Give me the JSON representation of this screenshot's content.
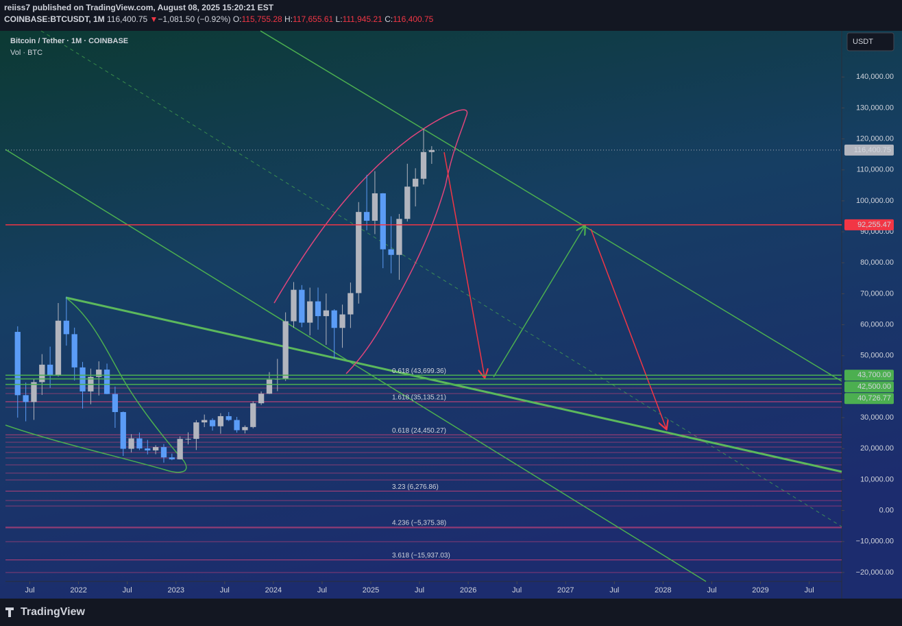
{
  "header": {
    "publisher": "reiiss7 published on TradingView.com, August 08, 2025 15:20:21 EST",
    "symbol": "COINBASE:BTCUSDT, 1M",
    "last": "116,400.75",
    "arrow": "▼",
    "change": "−1,081.50 (−0.92%)",
    "ohlc": [
      {
        "label": "O:",
        "value": "115,755.28"
      },
      {
        "label": "H:",
        "value": "117,655.61"
      },
      {
        "label": "L:",
        "value": "111,945.21"
      },
      {
        "label": "C:",
        "value": "116,400.75"
      }
    ]
  },
  "chart_data": {
    "type": "candlestick",
    "title": "Bitcoin / Tether · 1M · COINBASE",
    "subtitle": "Vol · BTC",
    "currency": "USDT",
    "up_color": "#b2b5be",
    "down_color": "#5b9cf6",
    "x": [
      "2021-05",
      "2021-06",
      "2021-07",
      "2021-08",
      "2021-09",
      "2021-10",
      "2021-11",
      "2021-12",
      "2022-01",
      "2022-02",
      "2022-03",
      "2022-04",
      "2022-05",
      "2022-06",
      "2022-07",
      "2022-08",
      "2022-09",
      "2022-10",
      "2022-11",
      "2022-12",
      "2023-01",
      "2023-02",
      "2023-03",
      "2023-04",
      "2023-05",
      "2023-06",
      "2023-07",
      "2023-08",
      "2023-09",
      "2023-10",
      "2023-11",
      "2023-12",
      "2024-01",
      "2024-02",
      "2024-03",
      "2024-04",
      "2024-05",
      "2024-06",
      "2024-07",
      "2024-08",
      "2024-09",
      "2024-10",
      "2024-11",
      "2024-12",
      "2025-01",
      "2025-02",
      "2025-03",
      "2025-04",
      "2025-05",
      "2025-06",
      "2025-07",
      "2025-08"
    ],
    "open": [
      57694,
      37253,
      35045,
      41461,
      47100,
      43824,
      61300,
      56950,
      46216,
      38466,
      43160,
      45510,
      37630,
      31801,
      19942,
      23293,
      20050,
      19423,
      20490,
      17164,
      16542,
      23125,
      23141,
      28465,
      29233,
      27210,
      30472,
      29232,
      25941,
      26963,
      34639,
      37723,
      42284,
      42580,
      61130,
      71280,
      60672,
      67540,
      62772,
      64628,
      58974,
      63327,
      70215,
      96407,
      93576,
      102429,
      84350,
      82550,
      94172,
      104591,
      107135,
      115755.28
    ],
    "high": [
      59500,
      41330,
      42448,
      50500,
      52920,
      67000,
      69000,
      59053,
      47990,
      45821,
      48189,
      47444,
      40023,
      31986,
      24668,
      25211,
      22799,
      21085,
      21480,
      18387,
      23960,
      25250,
      29184,
      31000,
      29820,
      31431,
      31804,
      30244,
      27483,
      35280,
      38450,
      44700,
      48969,
      64000,
      73777,
      72797,
      71979,
      71997,
      70079,
      65000,
      66500,
      73620,
      99588,
      108353,
      109588,
      102500,
      95000,
      95758,
      111980,
      110530,
      123218,
      117655.61
    ],
    "low": [
      30000,
      28805,
      29278,
      37332,
      39600,
      43283,
      53256,
      42000,
      32917,
      34322,
      37155,
      37578,
      26700,
      17622,
      18782,
      19520,
      18125,
      18190,
      15476,
      16256,
      16499,
      21351,
      19549,
      26942,
      25811,
      24800,
      28861,
      25166,
      24901,
      26538,
      34097,
      37629,
      38555,
      41884,
      59005,
      59191,
      56552,
      58402,
      53485,
      49000,
      52550,
      58946,
      66835,
      90500,
      89256,
      78258,
      76606,
      74508,
      93346,
      98200,
      105295,
      111945.21
    ],
    "close": [
      37253,
      35045,
      41461,
      47100,
      43824,
      61300,
      56950,
      46216,
      38466,
      43160,
      45510,
      37630,
      31801,
      19942,
      23293,
      20050,
      19423,
      20490,
      17164,
      16542,
      23125,
      23141,
      28465,
      29233,
      27210,
      30472,
      29232,
      25941,
      26963,
      34639,
      37723,
      42284,
      42580,
      61130,
      71280,
      60672,
      67540,
      62772,
      64628,
      58974,
      63327,
      70215,
      96407,
      93576,
      102429,
      84350,
      82550,
      94172,
      104591,
      107135,
      115764,
      116400.75
    ],
    "xlim": [
      "2021-04",
      "2029-11"
    ],
    "xticks": [
      {
        "value": "2021-07",
        "label": "Jul"
      },
      {
        "value": "2022-01",
        "label": "2022"
      },
      {
        "value": "2022-07",
        "label": "Jul"
      },
      {
        "value": "2023-01",
        "label": "2023"
      },
      {
        "value": "2023-07",
        "label": "Jul"
      },
      {
        "value": "2024-01",
        "label": "2024"
      },
      {
        "value": "2024-07",
        "label": "Jul"
      },
      {
        "value": "2025-01",
        "label": "2025"
      },
      {
        "value": "2025-07",
        "label": "Jul"
      },
      {
        "value": "2026-01",
        "label": "2026"
      },
      {
        "value": "2026-07",
        "label": "Jul"
      },
      {
        "value": "2027-01",
        "label": "2027"
      },
      {
        "value": "2027-07",
        "label": "Jul"
      },
      {
        "value": "2028-01",
        "label": "2028"
      },
      {
        "value": "2028-07",
        "label": "Jul"
      },
      {
        "value": "2029-01",
        "label": "2029"
      },
      {
        "value": "2029-07",
        "label": "Jul"
      }
    ],
    "ylim": [
      -22889,
      154889
    ],
    "yticks": [
      {
        "value": 140000,
        "label": "140,000.00"
      },
      {
        "value": 130000,
        "label": "130,000.00"
      },
      {
        "value": 120000,
        "label": "120,000.00"
      },
      {
        "value": 110000,
        "label": "110,000.00"
      },
      {
        "value": 100000,
        "label": "100,000.00"
      },
      {
        "value": 90000,
        "label": "90,000.00"
      },
      {
        "value": 80000,
        "label": "80,000.00"
      },
      {
        "value": 70000,
        "label": "70,000.00"
      },
      {
        "value": 60000,
        "label": "60,000.00"
      },
      {
        "value": 50000,
        "label": "50,000.00"
      },
      {
        "value": 30000,
        "label": "30,000.00"
      },
      {
        "value": 20000,
        "label": "20,000.00"
      },
      {
        "value": 10000,
        "label": "10,000.00"
      },
      {
        "value": 0,
        "label": "0.00"
      },
      {
        "value": -10000,
        "label": "−10,000.00"
      },
      {
        "value": -20000,
        "label": "−20,000.00"
      }
    ],
    "price_lines": [
      {
        "value": 116400.75,
        "label": "116,400.75",
        "color": "#b2b5be",
        "style": "dotted"
      },
      {
        "value": 92255.47,
        "label": "92,255.47",
        "color": "#f23645",
        "style": "solid"
      },
      {
        "value": 43700,
        "label": "43,700.00",
        "color": "#4caf50",
        "style": "solid"
      },
      {
        "value": 42500,
        "label": "42,500.00",
        "color": "#4caf50",
        "style": "solid"
      },
      {
        "value": 40726.77,
        "label": "40,726.77",
        "color": "#4caf50",
        "style": "solid"
      }
    ],
    "fib_levels": [
      {
        "value": 43699.36,
        "label": "0.618 (43,699.36)"
      },
      {
        "value": 35135.21,
        "label": "1.618 (35,135.21)"
      },
      {
        "value": 24450.27,
        "label": "0.618 (24,450.27)"
      },
      {
        "value": 6276.86,
        "label": "3.23 (6,276.86)"
      },
      {
        "value": -5375.38,
        "label": "4.236 (−5,375.38)"
      },
      {
        "value": -15937.03,
        "label": "3.618 (−15,937.03)"
      }
    ],
    "fib_color": "#e0457b",
    "footer": "TradingView"
  }
}
